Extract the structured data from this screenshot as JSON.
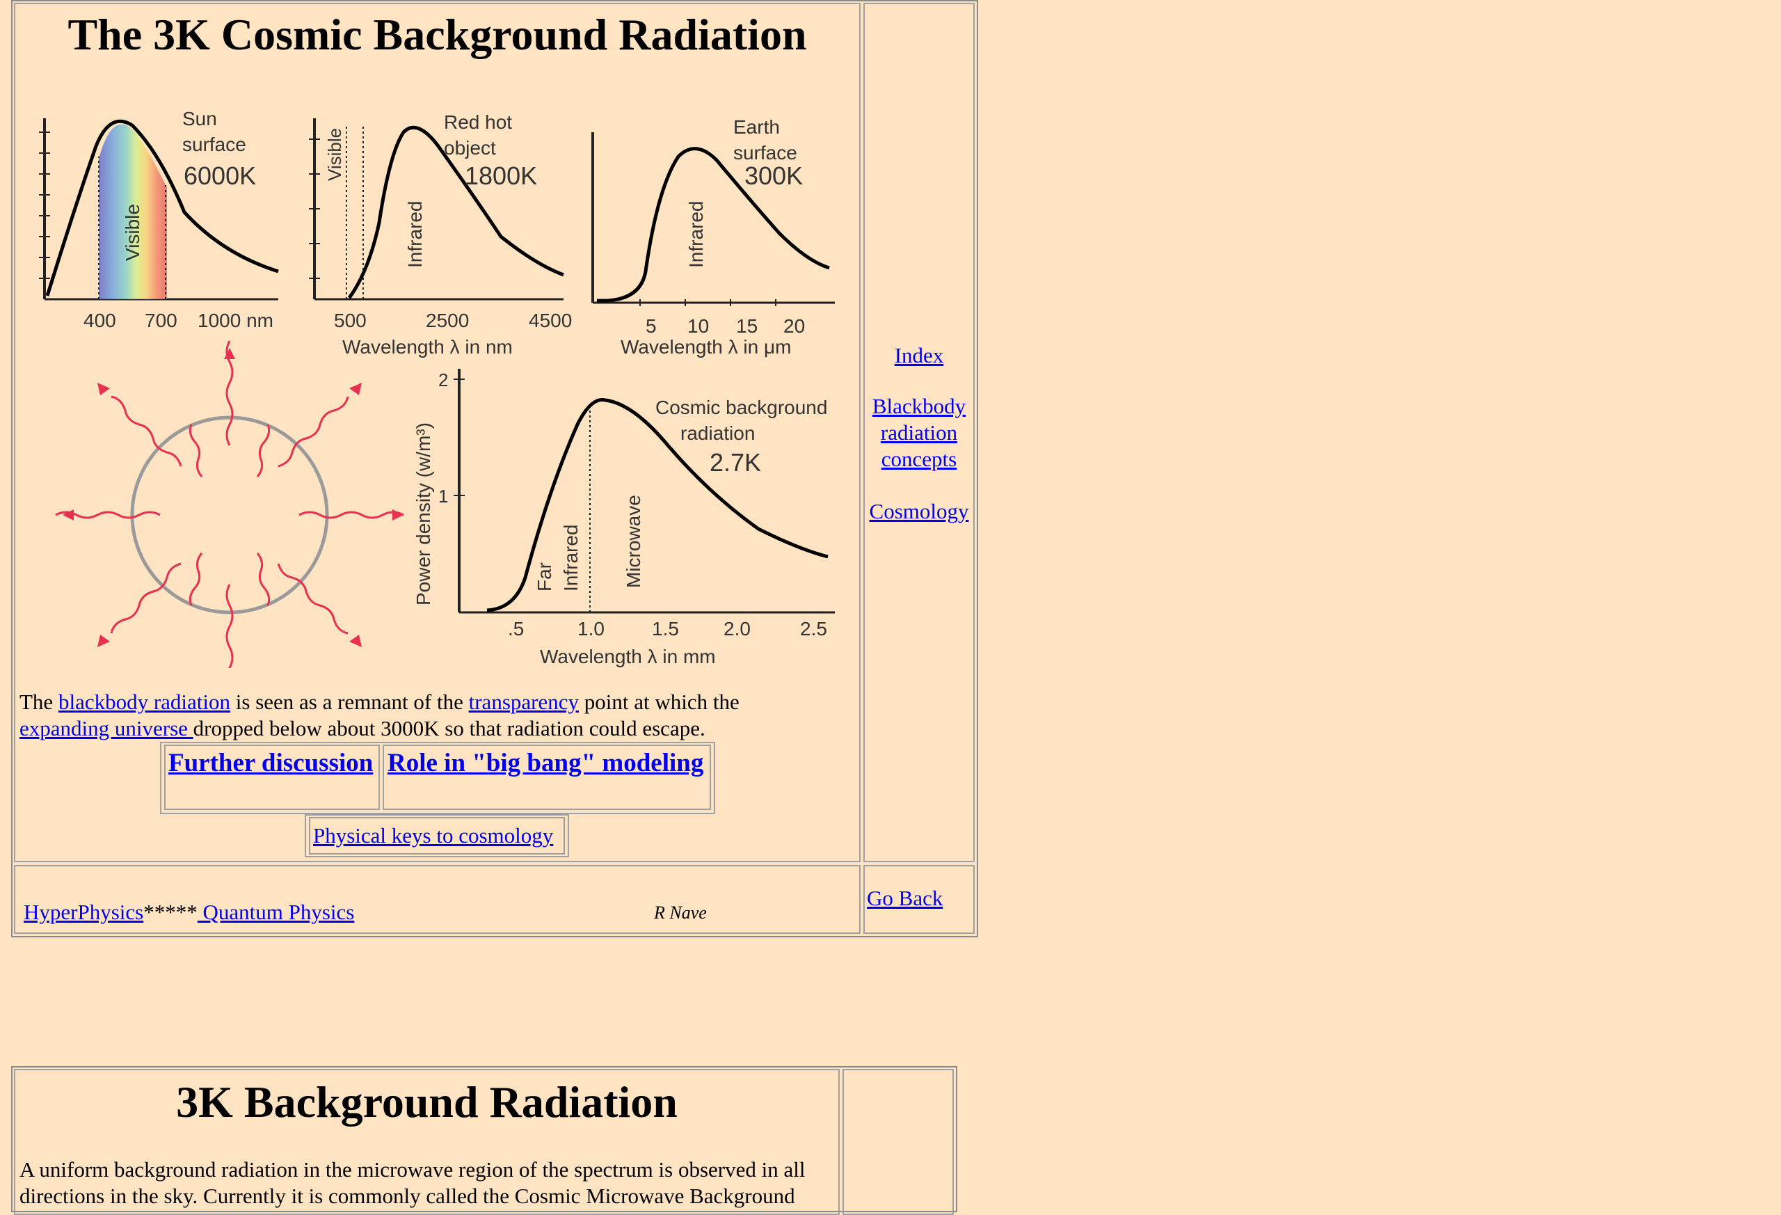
{
  "top": {
    "title": "The 3K Cosmic Background Radiation",
    "figure": {
      "sun": {
        "line1": "Sun",
        "line2": "surface",
        "temp": "6000K",
        "band": "Visible",
        "ticks": [
          "400",
          "700",
          "1000 nm"
        ]
      },
      "redhot": {
        "line1": "Red hot",
        "line2": "object",
        "temp": "1800K",
        "band_visible": "Visible",
        "band_ir": "Infrared",
        "ticks": [
          "500",
          "2500",
          "4500"
        ],
        "xlabel": "Wavelength λ in nm"
      },
      "earth": {
        "line1": "Earth",
        "line2": "surface",
        "temp": "300K",
        "band": "Infrared",
        "ticks": [
          "5",
          "10",
          "15",
          "20"
        ],
        "xlabel": "Wavelength λ in μm"
      },
      "cosmic": {
        "line1": "Cosmic background",
        "line2": "radiation",
        "temp": "2.7K",
        "band_far1": "Far",
        "band_far2": "Infrared",
        "band_micro": "Microwave",
        "yticks": [
          "2",
          "1"
        ],
        "ylabel": "Power density (w/m³)",
        "xticks": [
          ".5",
          "1.0",
          "1.5",
          "2.0",
          "2.5"
        ],
        "xlabel": "Wavelength λ in mm"
      }
    },
    "para": {
      "t1": "The ",
      "l1": "blackbody radiation",
      "t2": " is seen as a remnant of the ",
      "l2": "transparency",
      "t3": " point at which the",
      "l3": "expanding universe ",
      "t4": "dropped below about 3000K so that radiation could escape."
    },
    "buttons": {
      "further": "Further discussion",
      "role": "Role in \"big bang\" modeling",
      "keys": "Physical keys to cosmology"
    },
    "sidebar": {
      "index": "Index",
      "bb1": "Blackbody",
      "bb2": "radiation",
      "bb3": "concepts",
      "cosmology": "Cosmology"
    },
    "footer": {
      "hyper": "HyperPhysics",
      "stars": "*****",
      "quantum": " Quantum Physics",
      "author": "R Nave",
      "goback": "Go Back"
    }
  },
  "second": {
    "title": "3K Background Radiation",
    "line1": "A uniform background radiation in the microwave region of the spectrum is observed in all",
    "line2": "directions in the sky. Currently it is commonly called the Cosmic Microwave Background"
  }
}
